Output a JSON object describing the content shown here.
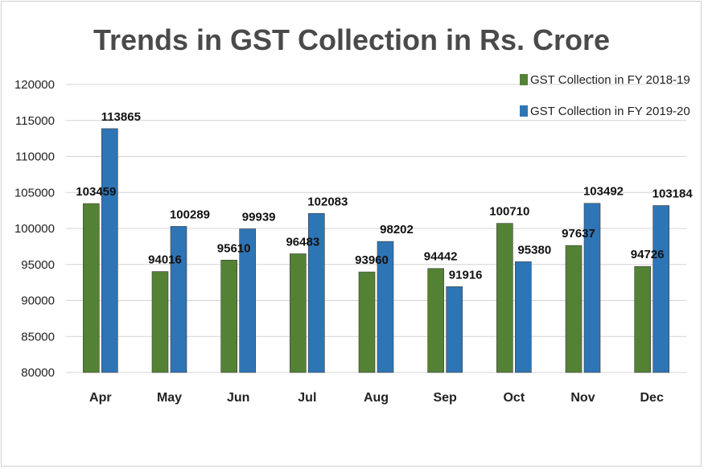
{
  "chart_data": {
    "type": "bar",
    "title": "Trends in GST Collection in Rs. Crore",
    "xlabel": "",
    "ylabel": "",
    "categories": [
      "Apr",
      "May",
      "Jun",
      "Jul",
      "Aug",
      "Sep",
      "Oct",
      "Nov",
      "Dec"
    ],
    "series": [
      {
        "name": "GST Collection in FY 2018-19",
        "color": "#548235",
        "values": [
          103459,
          94016,
          95610,
          96483,
          93960,
          94442,
          100710,
          97637,
          94726
        ]
      },
      {
        "name": "GST Collection in FY 2019-20",
        "color": "#2e75b6",
        "values": [
          113865,
          100289,
          99939,
          102083,
          98202,
          91916,
          95380,
          103492,
          103184
        ]
      }
    ],
    "ylim": [
      80000,
      120000
    ],
    "yticks": [
      80000,
      85000,
      90000,
      95000,
      100000,
      105000,
      110000,
      115000,
      120000
    ],
    "grid": true,
    "legend_position": "top-right"
  }
}
